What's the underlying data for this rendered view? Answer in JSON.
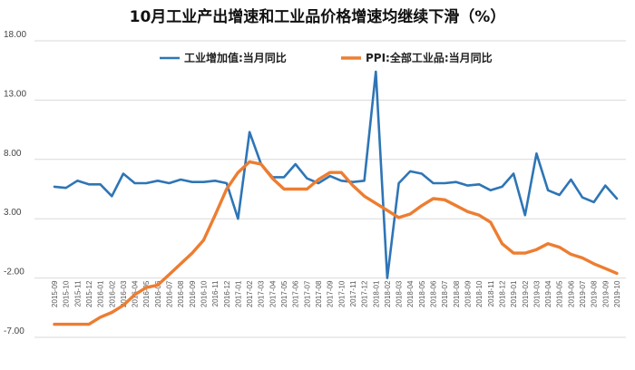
{
  "chart_data": {
    "type": "line",
    "title": "10月工业产出增速和工业品价格增速均继续下滑（%）",
    "xlabel": "",
    "ylabel": "",
    "ylim": [
      -7,
      18
    ],
    "yticks": [
      "18.00",
      "13.00",
      "8.00",
      "3.00",
      "-2.00",
      "-7.00"
    ],
    "grid": true,
    "legend_position": "top",
    "categories": [
      "2015-09",
      "2015-10",
      "2015-11",
      "2015-12",
      "2016-01",
      "2016-02",
      "2016-03",
      "2016-04",
      "2016-05",
      "2016-06",
      "2016-07",
      "2016-08",
      "2016-09",
      "2016-10",
      "2016-11",
      "2016-12",
      "2017-01",
      "2017-02",
      "2017-03",
      "2017-04",
      "2017-05",
      "2017-06",
      "2017-07",
      "2017-08",
      "2017-09",
      "2017-10",
      "2017-11",
      "2017-12",
      "2018-01",
      "2018-02",
      "2018-03",
      "2018-04",
      "2018-05",
      "2018-06",
      "2018-07",
      "2018-08",
      "2018-09",
      "2018-10",
      "2018-11",
      "2018-12",
      "2019-01",
      "2019-02",
      "2019-03",
      "2019-04",
      "2019-05",
      "2019-06",
      "2019-07",
      "2019-08",
      "2019-09",
      "2019-10"
    ],
    "series": [
      {
        "name": "工业增加值:当月同比",
        "color": "#2e75b6",
        "values": [
          5.7,
          5.6,
          6.2,
          5.9,
          5.9,
          4.9,
          6.8,
          6.0,
          6.0,
          6.2,
          6.0,
          6.3,
          6.1,
          6.1,
          6.2,
          6.0,
          3.0,
          10.3,
          7.6,
          6.5,
          6.5,
          7.6,
          6.4,
          6.0,
          6.6,
          6.2,
          6.1,
          6.2,
          15.4,
          -2.0,
          6.0,
          7.0,
          6.8,
          6.0,
          6.0,
          6.1,
          5.8,
          5.9,
          5.4,
          5.7,
          6.8,
          3.3,
          8.5,
          5.4,
          5.0,
          6.3,
          4.8,
          4.4,
          5.8,
          4.7
        ]
      },
      {
        "name": "PPI:全部工业品:当月同比",
        "color": "#ed7d31",
        "values": [
          -5.9,
          -5.9,
          -5.9,
          -5.9,
          -5.3,
          -4.9,
          -4.3,
          -3.4,
          -2.8,
          -2.6,
          -1.7,
          -0.8,
          0.1,
          1.2,
          3.3,
          5.5,
          6.9,
          7.8,
          7.6,
          6.4,
          5.5,
          5.5,
          5.5,
          6.3,
          6.9,
          6.9,
          5.8,
          4.9,
          4.3,
          3.7,
          3.1,
          3.4,
          4.1,
          4.7,
          4.6,
          4.1,
          3.6,
          3.3,
          2.7,
          0.9,
          0.1,
          0.1,
          0.4,
          0.9,
          0.6,
          0.0,
          -0.3,
          -0.8,
          -1.2,
          -1.6
        ]
      }
    ]
  }
}
